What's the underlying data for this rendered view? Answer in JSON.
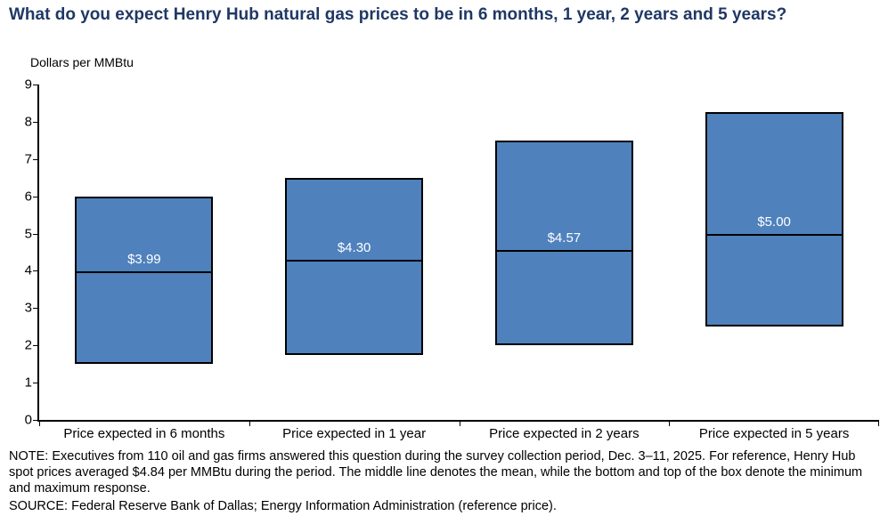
{
  "title": "What do you expect Henry Hub natural gas prices to be in 6 months, 1 year, 2 years and 5 years?",
  "axis_title": "Dollars per MMBtu",
  "note": "NOTE: Executives from 110 oil and gas firms answered this question during the survey collection period, Dec. 3–11, 2025. For reference, Henry Hub spot prices averaged $4.84 per MMBtu during the period. The middle line denotes the mean, while the bottom and top of the box denote the minimum and maximum  response.",
  "source": "SOURCE: Federal Reserve Bank of Dallas; Energy Information Administration (reference price).",
  "colors": {
    "title": "#1f3864",
    "bar_fill": "#4f81bd",
    "bar_border": "#000000",
    "mean_label": "#ffffff"
  },
  "chart_data": {
    "type": "bar",
    "subtype": "floating-range-bar",
    "title": "What do you expect Henry Hub natural gas prices to be in 6 months, 1 year, 2 years and 5 years?",
    "xlabel": "",
    "ylabel": "Dollars per MMBtu",
    "ylim": [
      0,
      9
    ],
    "ytick_step": 1,
    "grid": false,
    "legend": "none",
    "categories": [
      "Price expected in 6 months",
      "Price expected in 1 year",
      "Price expected in 2 years",
      "Price expected in 5 years"
    ],
    "series": [
      {
        "name": "minimum",
        "values": [
          1.5,
          1.75,
          2.0,
          2.5
        ]
      },
      {
        "name": "maximum",
        "values": [
          6.0,
          6.5,
          7.5,
          8.25
        ]
      },
      {
        "name": "mean",
        "values": [
          3.99,
          4.3,
          4.57,
          5.0
        ]
      }
    ],
    "mean_labels": [
      "$3.99",
      "$4.30",
      "$4.57",
      "$5.00"
    ]
  }
}
